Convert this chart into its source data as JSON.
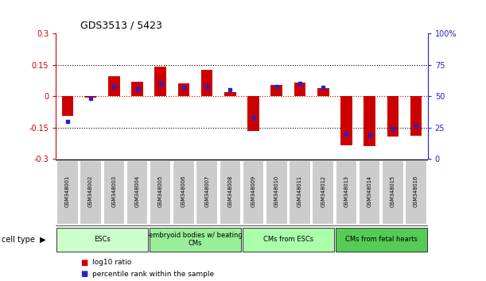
{
  "title": "GDS3513 / 5423",
  "samples": [
    "GSM348001",
    "GSM348002",
    "GSM348003",
    "GSM348004",
    "GSM348005",
    "GSM348006",
    "GSM348007",
    "GSM348008",
    "GSM348009",
    "GSM348010",
    "GSM348011",
    "GSM348012",
    "GSM348013",
    "GSM348014",
    "GSM348015",
    "GSM348016"
  ],
  "log10_ratio": [
    -0.095,
    -0.005,
    0.095,
    0.07,
    0.14,
    0.06,
    0.125,
    0.02,
    -0.165,
    0.055,
    0.065,
    0.04,
    -0.235,
    -0.24,
    -0.195,
    -0.19
  ],
  "percentile_rank": [
    30,
    48,
    58,
    56,
    60,
    57,
    58,
    55,
    33,
    58,
    60,
    57,
    20,
    19,
    24,
    26
  ],
  "ylim_left": [
    -0.3,
    0.3
  ],
  "ylim_right": [
    0,
    100
  ],
  "yticks_left": [
    -0.3,
    -0.15,
    0,
    0.15,
    0.3
  ],
  "yticks_right": [
    0,
    25,
    50,
    75,
    100
  ],
  "bar_color_red": "#CC0000",
  "bar_color_blue": "#2222CC",
  "cell_types": [
    {
      "label": "ESCs",
      "start": 0,
      "end": 3,
      "color": "#CCFFCC"
    },
    {
      "label": "embryoid bodies w/ beating\nCMs",
      "start": 4,
      "end": 7,
      "color": "#99EE99"
    },
    {
      "label": "CMs from ESCs",
      "start": 8,
      "end": 11,
      "color": "#AAFFAA"
    },
    {
      "label": "CMs from fetal hearts",
      "start": 12,
      "end": 15,
      "color": "#55CC55"
    }
  ],
  "legend_red_label": "log10 ratio",
  "legend_blue_label": "percentile rank within the sample",
  "cell_type_label": "cell type",
  "sample_box_color": "#CCCCCC",
  "sample_box_edge": "#FFFFFF"
}
